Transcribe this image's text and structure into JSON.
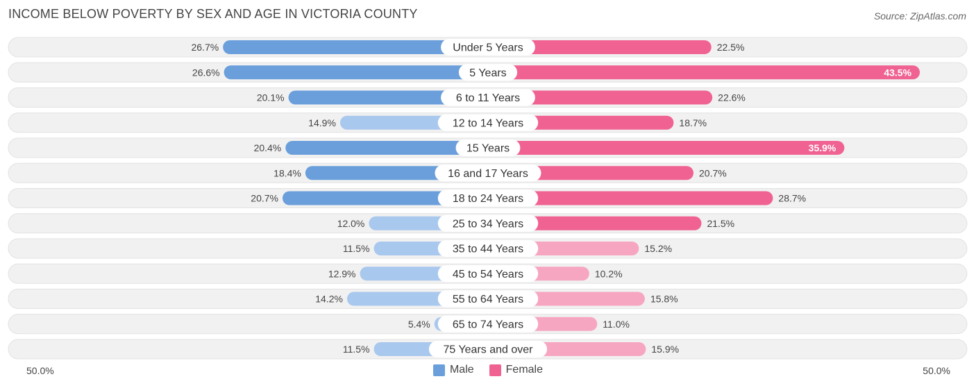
{
  "header": {
    "title": "INCOME BELOW POVERTY BY SEX AND AGE IN VICTORIA COUNTY",
    "source": "Source: ZipAtlas.com"
  },
  "axis": {
    "left_label": "50.0%",
    "right_label": "50.0%"
  },
  "legend": {
    "male_label": "Male",
    "female_label": "Female"
  },
  "colors": {
    "male": "#6a9fdc",
    "male_light": "#a9c8ee",
    "female": "#f06292",
    "female_light": "#f7a6c1",
    "row_bg": "#f1f1f1"
  },
  "chart_data": {
    "type": "bar",
    "orientation": "horizontal-diverging",
    "title": "INCOME BELOW POVERTY BY SEX AND AGE IN VICTORIA COUNTY",
    "xlim": [
      0,
      50
    ],
    "categories": [
      "Under 5 Years",
      "5 Years",
      "6 to 11 Years",
      "12 to 14 Years",
      "15 Years",
      "16 and 17 Years",
      "18 to 24 Years",
      "25 to 34 Years",
      "35 to 44 Years",
      "45 to 54 Years",
      "55 to 64 Years",
      "65 to 74 Years",
      "75 Years and over"
    ],
    "series": [
      {
        "name": "Male",
        "values": [
          26.7,
          26.6,
          20.1,
          14.9,
          20.4,
          18.4,
          20.7,
          12.0,
          11.5,
          12.9,
          14.2,
          5.4,
          11.5
        ],
        "labels": [
          "26.7%",
          "26.6%",
          "20.1%",
          "14.9%",
          "20.4%",
          "18.4%",
          "20.7%",
          "12.0%",
          "11.5%",
          "12.9%",
          "14.2%",
          "5.4%",
          "11.5%"
        ]
      },
      {
        "name": "Female",
        "values": [
          22.5,
          43.5,
          22.6,
          18.7,
          35.9,
          20.7,
          28.7,
          21.5,
          15.2,
          10.2,
          15.8,
          11.0,
          15.9
        ],
        "labels": [
          "22.5%",
          "43.5%",
          "22.6%",
          "18.7%",
          "35.9%",
          "20.7%",
          "28.7%",
          "21.5%",
          "15.2%",
          "10.2%",
          "15.8%",
          "11.0%",
          "15.9%"
        ]
      }
    ],
    "legend_position": "bottom-center"
  }
}
